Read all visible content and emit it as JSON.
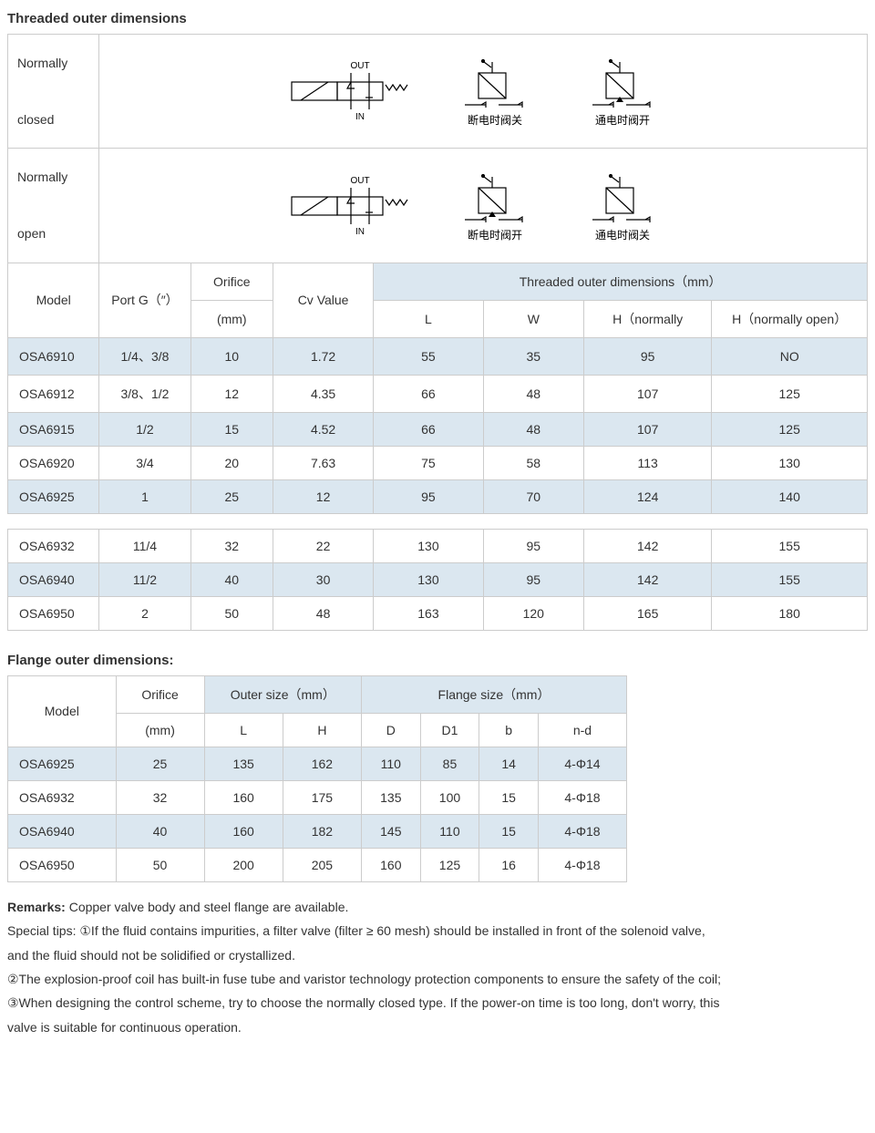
{
  "threaded": {
    "title": "Threaded outer dimensions",
    "diagramRows": [
      {
        "label": "Normally\nclosed",
        "out": "OUT",
        "in": "IN",
        "cap1": "断电时阀关",
        "cap2": "通电时阀开"
      },
      {
        "label": "Normally\nopen",
        "out": "OUT",
        "in": "IN",
        "cap1": "断电时阀开",
        "cap2": "通电时阀关"
      }
    ],
    "headers": {
      "model": "Model",
      "portG": "Port G（″）",
      "orifice": "Orifice",
      "orificeUnit": "(mm)",
      "cv": "Cv Value",
      "outerGroup": "Threaded outer dimensions（mm）",
      "L": "L",
      "W": "W",
      "Hnc": "H（normally",
      "Hno": "H（normally open）"
    },
    "rowsA": [
      {
        "model": "OSA6910",
        "port": "1/4、3/8",
        "orifice": "10",
        "cv": "1.72",
        "L": "55",
        "W": "35",
        "Hnc": "95",
        "Hno": "NO",
        "cls": "row-blue"
      },
      {
        "model": "OSA6912",
        "port": "3/8、1/2",
        "orifice": "12",
        "cv": "4.35",
        "L": "66",
        "W": "48",
        "Hnc": "107",
        "Hno": "125",
        "cls": "row-white"
      },
      {
        "model": "OSA6915",
        "port": "1/2",
        "orifice": "15",
        "cv": "4.52",
        "L": "66",
        "W": "48",
        "Hnc": "107",
        "Hno": "125",
        "cls": "row-blue"
      },
      {
        "model": "OSA6920",
        "port": "3/4",
        "orifice": "20",
        "cv": "7.63",
        "L": "75",
        "W": "58",
        "Hnc": "113",
        "Hno": "130",
        "cls": "row-white"
      },
      {
        "model": "OSA6925",
        "port": "1",
        "orifice": "25",
        "cv": "12",
        "L": "95",
        "W": "70",
        "Hnc": "124",
        "Hno": "140",
        "cls": "row-blue"
      }
    ],
    "rowsB": [
      {
        "model": "OSA6932",
        "port": "11/4",
        "orifice": "32",
        "cv": "22",
        "L": "130",
        "W": "95",
        "Hnc": "142",
        "Hno": "155",
        "cls": "row-white"
      },
      {
        "model": "OSA6940",
        "port": "11/2",
        "orifice": "40",
        "cv": "30",
        "L": "130",
        "W": "95",
        "Hnc": "142",
        "Hno": "155",
        "cls": "row-blue"
      },
      {
        "model": "OSA6950",
        "port": "2",
        "orifice": "50",
        "cv": "48",
        "L": "163",
        "W": "120",
        "Hnc": "165",
        "Hno": "180",
        "cls": "row-white"
      }
    ]
  },
  "flange": {
    "title": "Flange outer dimensions:",
    "headers": {
      "model": "Model",
      "orifice": "Orifice",
      "orificeUnit": "(mm)",
      "outerGroup": "Outer size（mm）",
      "flangeGroup": "Flange size（mm）",
      "L": "L",
      "H": "H",
      "D": "D",
      "D1": "D1",
      "b": "b",
      "nd": "n-d"
    },
    "rows": [
      {
        "model": "OSA6925",
        "orifice": "25",
        "L": "135",
        "H": "162",
        "D": "110",
        "D1": "85",
        "b": "14",
        "nd": "4-Φ14",
        "cls": "row-blue"
      },
      {
        "model": "OSA6932",
        "orifice": "32",
        "L": "160",
        "H": "175",
        "D": "135",
        "D1": "100",
        "b": "15",
        "nd": "4-Φ18",
        "cls": "row-white"
      },
      {
        "model": "OSA6940",
        "orifice": "40",
        "L": "160",
        "H": "182",
        "D": "145",
        "D1": "110",
        "b": "15",
        "nd": "4-Φ18",
        "cls": "row-blue"
      },
      {
        "model": "OSA6950",
        "orifice": "50",
        "L": "200",
        "H": "205",
        "D": "160",
        "D1": "125",
        "b": "16",
        "nd": "4-Φ18",
        "cls": "row-white"
      }
    ]
  },
  "remarks": {
    "bold": "Remarks:",
    "r0": " Copper valve body and steel flange are available.",
    "l1": "Special tips: ①If the fluid contains impurities, a filter valve (filter ≥ 60 mesh) should be installed in front of the solenoid valve,",
    "l2": "and the fluid should not be solidified or crystallized.",
    "l3": "②The explosion-proof coil has built-in fuse tube and varistor technology protection components to ensure the safety of the coil;",
    "l4": "③When designing the control scheme, try to choose the normally closed type. If the power-on time is too long, don't worry, this",
    "l5": "valve is suitable for continuous operation."
  },
  "style": {
    "headerBg": "#dbe7f0",
    "rowBlueBg": "#dbe7f0",
    "borderColor": "#cccccc",
    "textColor": "#333333",
    "diagramStroke": "#000000",
    "colWidths": {
      "model": 100,
      "port": 100,
      "orifice": 90,
      "cv": 110,
      "L": 120,
      "W": 110,
      "Hnc": 140,
      "Hno": 170
    }
  }
}
